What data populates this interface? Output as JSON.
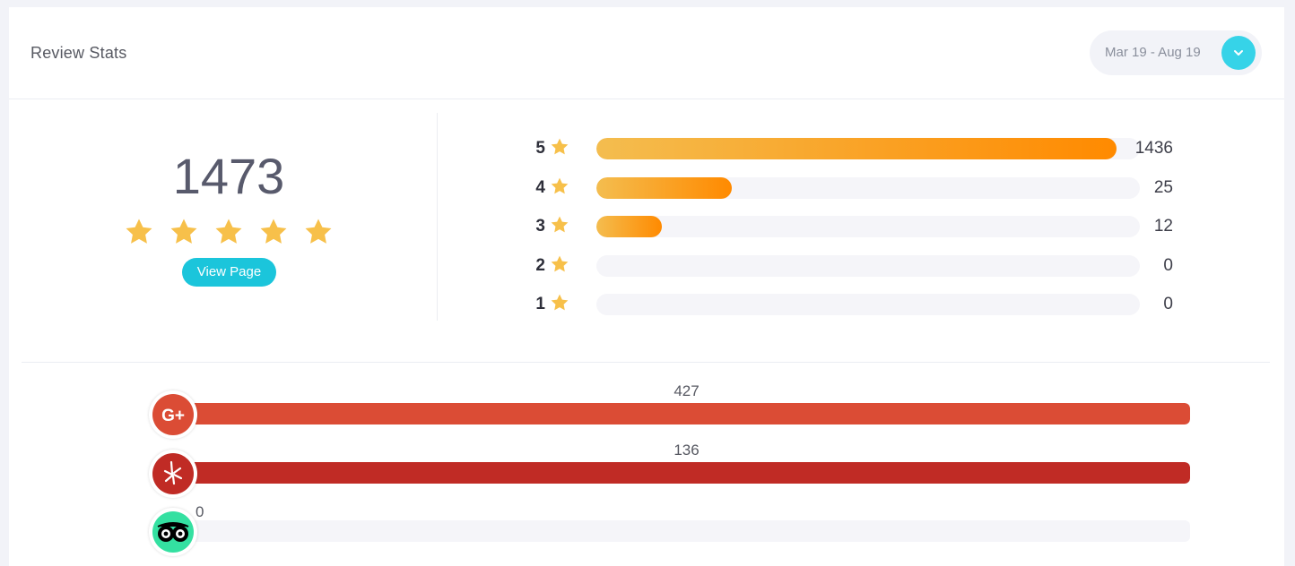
{
  "header": {
    "title": "Review Stats",
    "date_range": "Mar 19 - Aug 19",
    "dropdown_icon": "chevron-down-icon",
    "accent_color": "#36d3e8"
  },
  "summary": {
    "total": "1473",
    "average_rating": 5,
    "view_button": "View Page"
  },
  "distribution": [
    {
      "stars": "5",
      "count": "1436",
      "fraction": 1.0
    },
    {
      "stars": "4",
      "count": "25",
      "fraction": 0.26
    },
    {
      "stars": "3",
      "count": "12",
      "fraction": 0.125
    },
    {
      "stars": "2",
      "count": "0",
      "fraction": 0
    },
    {
      "stars": "1",
      "count": "0",
      "fraction": 0
    }
  ],
  "sources": [
    {
      "name": "google-plus",
      "icon": "google-plus-icon",
      "value": "427",
      "fraction": 1.0,
      "color": "#db4c35"
    },
    {
      "name": "yelp",
      "icon": "yelp-icon",
      "value": "136",
      "fraction": 1.0,
      "color": "#c02b25"
    },
    {
      "name": "tripadvisor",
      "icon": "tripadvisor-icon",
      "value": "0",
      "fraction": 0,
      "color": "#34e0a1"
    }
  ]
}
